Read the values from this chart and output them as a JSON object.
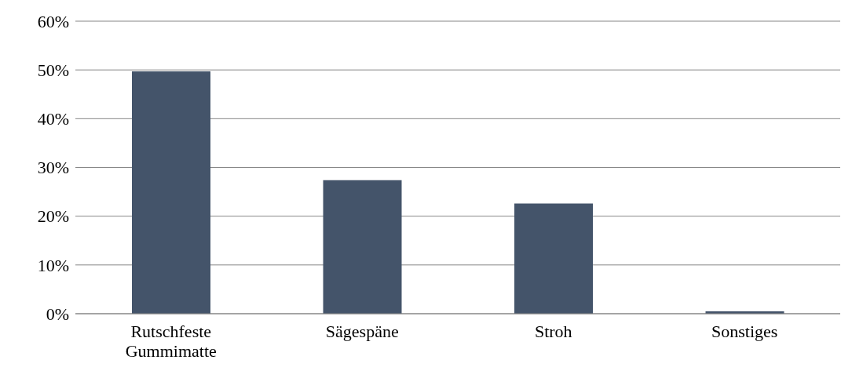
{
  "chart_data": {
    "type": "bar",
    "categories": [
      "Rutschfeste Gummimatte",
      "Sägespäne",
      "Stroh",
      "Sonstiges"
    ],
    "values": [
      49.7,
      27.4,
      22.6,
      0.5
    ],
    "color": "#44546a",
    "ylim": [
      0,
      60
    ],
    "yticks": [
      {
        "value": 0,
        "label": "0%"
      },
      {
        "value": 10,
        "label": "10%"
      },
      {
        "value": 20,
        "label": "20%"
      },
      {
        "value": 30,
        "label": "30%"
      },
      {
        "value": 40,
        "label": "40%"
      },
      {
        "value": 50,
        "label": "50%"
      },
      {
        "value": 60,
        "label": "60%"
      }
    ],
    "grid": "y"
  }
}
